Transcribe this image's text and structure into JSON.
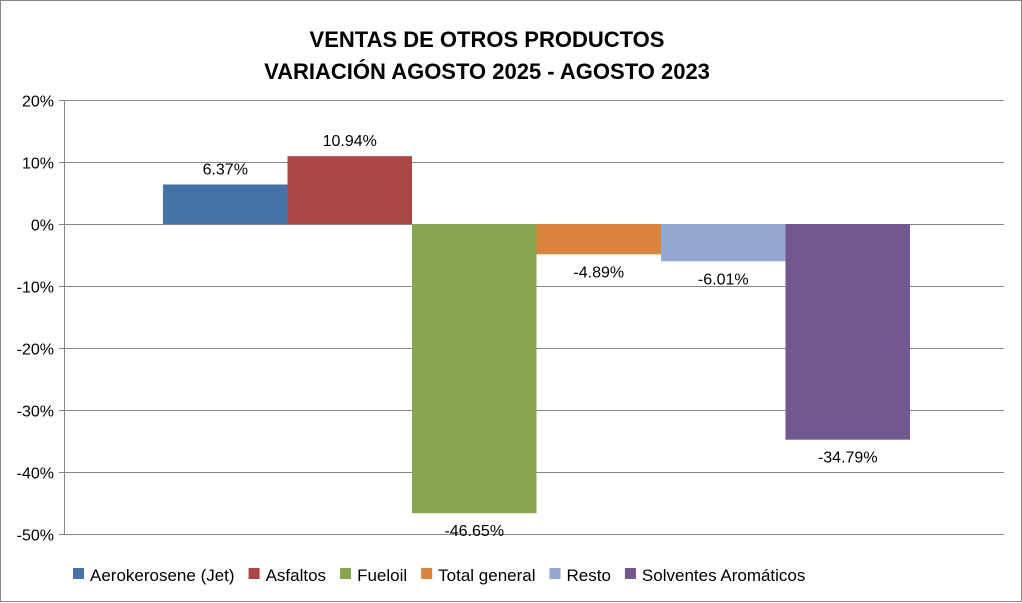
{
  "chart_data": {
    "type": "bar",
    "title": [
      "VENTAS DE OTROS PRODUCTOS",
      "VARIACIÓN AGOSTO 2025 - AGOSTO 2023"
    ],
    "xlabel": "",
    "ylabel": "",
    "ylim": [
      -50,
      20
    ],
    "yticks": [
      20,
      10,
      0,
      -10,
      -20,
      -30,
      -40,
      -50
    ],
    "ytick_labels": [
      "20%",
      "10%",
      "0%",
      "-10%",
      "-20%",
      "-30%",
      "-40%",
      "-50%"
    ],
    "grid": true,
    "legend_position": "bottom",
    "series": [
      {
        "name": "Aerokerosene (Jet)",
        "value": 6.37,
        "label": "6.37%",
        "color": "#4572A7"
      },
      {
        "name": "Asfaltos",
        "value": 10.94,
        "label": "10.94%",
        "color": "#AA4643"
      },
      {
        "name": "Fueloil",
        "value": -46.65,
        "label": "-46.65%",
        "color": "#89A54E"
      },
      {
        "name": "Total general",
        "value": -4.89,
        "label": "-4.89%",
        "color": "#DB843D"
      },
      {
        "name": "Resto",
        "value": -6.01,
        "label": "-6.01%",
        "color": "#93A9CF"
      },
      {
        "name": "Solventes Aromáticos",
        "value": -34.79,
        "label": "-34.79%",
        "color": "#71588F"
      }
    ]
  }
}
